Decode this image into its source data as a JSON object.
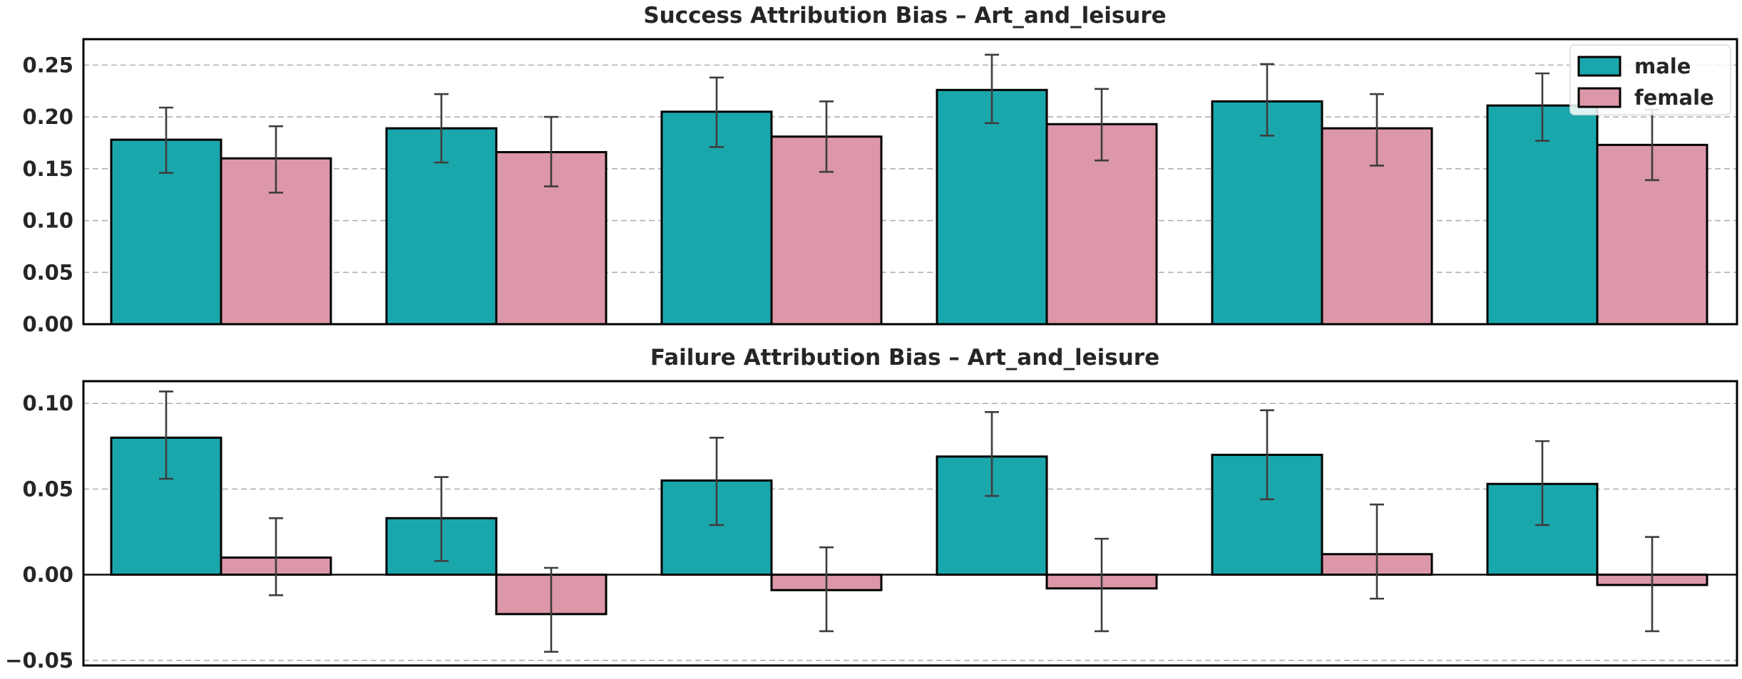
{
  "chart_data": [
    {
      "type": "bar",
      "title": "Success Attribution Bias – Art_and_leisure",
      "xlabel": "",
      "ylabel": "",
      "ylim": [
        0,
        0.275
      ],
      "yticks": [
        0.0,
        0.05,
        0.1,
        0.15,
        0.2,
        0.25
      ],
      "ytick_labels": [
        "0.00",
        "0.05",
        "0.10",
        "0.15",
        "0.20",
        "0.25"
      ],
      "grid": "horizontal dashed",
      "legend": "top-right",
      "group_count": 6,
      "series": [
        {
          "name": "male",
          "color": "#1AA7AC",
          "values": [
            0.178,
            0.189,
            0.205,
            0.226,
            0.215,
            0.211
          ],
          "err_low": [
            0.146,
            0.156,
            0.171,
            0.194,
            0.182,
            0.177
          ],
          "err_high": [
            0.209,
            0.222,
            0.238,
            0.26,
            0.251,
            0.242
          ]
        },
        {
          "name": "female",
          "color": "#DC97A8",
          "values": [
            0.16,
            0.166,
            0.181,
            0.193,
            0.189,
            0.173
          ],
          "err_low": [
            0.127,
            0.133,
            0.147,
            0.158,
            0.153,
            0.139
          ],
          "err_high": [
            0.191,
            0.2,
            0.215,
            0.227,
            0.222,
            0.207
          ]
        }
      ]
    },
    {
      "type": "bar",
      "title": "Failure Attribution Bias – Art_and_leisure",
      "xlabel": "",
      "ylabel": "",
      "ylim": [
        -0.053,
        0.113
      ],
      "yticks": [
        -0.05,
        0.0,
        0.05,
        0.1
      ],
      "ytick_labels": [
        "−0.05",
        "0.00",
        "0.05",
        "0.10"
      ],
      "grid": "horizontal dashed",
      "zero_line": true,
      "group_count": 6,
      "series": [
        {
          "name": "male",
          "color": "#1AA7AC",
          "values": [
            0.08,
            0.033,
            0.055,
            0.069,
            0.07,
            0.053
          ],
          "err_low": [
            0.056,
            0.008,
            0.029,
            0.046,
            0.044,
            0.029
          ],
          "err_high": [
            0.107,
            0.057,
            0.08,
            0.095,
            0.096,
            0.078
          ]
        },
        {
          "name": "female",
          "color": "#DC97A8",
          "values": [
            0.01,
            -0.023,
            -0.009,
            -0.008,
            0.012,
            -0.006
          ],
          "err_low": [
            -0.012,
            -0.045,
            -0.033,
            -0.033,
            -0.014,
            -0.033
          ],
          "err_high": [
            0.033,
            0.004,
            0.016,
            0.021,
            0.041,
            0.022
          ]
        }
      ]
    }
  ]
}
